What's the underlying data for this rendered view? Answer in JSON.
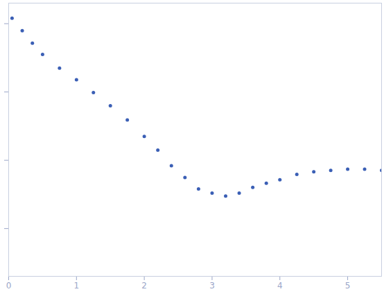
{
  "chart_data": {
    "type": "scatter",
    "log": "y",
    "color": "#3b5fb5",
    "marker": "circle",
    "grid": false,
    "tick_labels": "x",
    "x": [
      0.05,
      0.2,
      0.35,
      0.5,
      0.75,
      1.0,
      1.25,
      1.5,
      1.75,
      2.0,
      2.2,
      2.4,
      2.6,
      2.8,
      3.0,
      3.2,
      3.4,
      3.6,
      3.8,
      4.0,
      4.25,
      4.5,
      4.75,
      5.0,
      5.25,
      5.5
    ],
    "values": [
      1.2,
      0.79,
      0.52,
      0.355,
      0.224,
      0.151,
      0.098,
      0.063,
      0.039,
      0.0224,
      0.0141,
      0.0083,
      0.0056,
      0.0038,
      0.0033,
      0.003,
      0.0033,
      0.004,
      0.0046,
      0.0052,
      0.0062,
      0.0068,
      0.0071,
      0.0074,
      0.0074,
      0.0071
    ],
    "xlim": [
      0,
      5.5
    ],
    "xticks": [
      0,
      1,
      2,
      3,
      4,
      5
    ],
    "ylim": [
      0.0002,
      2
    ],
    "yticks": [
      0.001,
      0.01,
      0.1,
      1
    ]
  }
}
